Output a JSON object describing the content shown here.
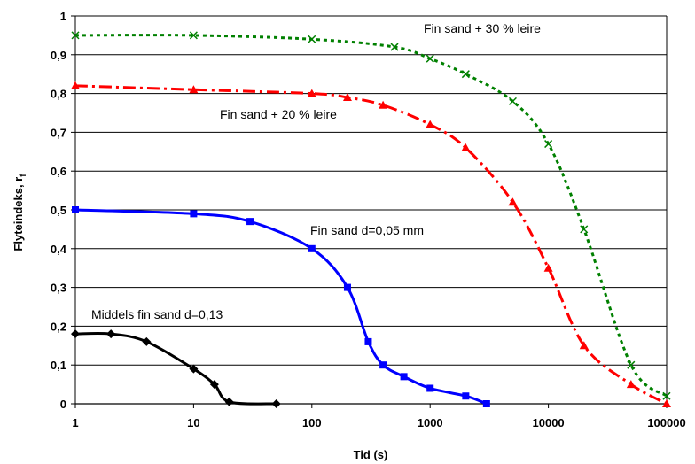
{
  "chart_data": {
    "type": "line",
    "xscale": "log",
    "xlabel": "Tid (s)",
    "ylabel": "Flyteindeks, r",
    "ylabel_subscript": "f",
    "xlim": [
      1,
      100000
    ],
    "ylim": [
      0,
      1
    ],
    "x_ticks": [
      "1",
      "10",
      "100",
      "1000",
      "10000",
      "100000"
    ],
    "y_ticks": [
      "0",
      "0,1",
      "0,2",
      "0,3",
      "0,4",
      "0,5",
      "0,6",
      "0,7",
      "0,8",
      "0,9",
      "1"
    ],
    "grid": "horizontal",
    "legend": "none",
    "series": [
      {
        "name": "Middels fin sand d=0,13",
        "color": "#000000",
        "dash": "solid",
        "marker": "diamond",
        "x": [
          1,
          2,
          4,
          10,
          15,
          20,
          50
        ],
        "y": [
          0.18,
          0.18,
          0.16,
          0.09,
          0.05,
          0.005,
          0.0
        ]
      },
      {
        "name": "Fin sand d=0,05 mm",
        "color": "#0000ff",
        "dash": "solid",
        "marker": "square",
        "x": [
          1,
          10,
          30,
          100,
          200,
          300,
          400,
          600,
          1000,
          2000,
          3000
        ],
        "y": [
          0.5,
          0.49,
          0.47,
          0.4,
          0.3,
          0.16,
          0.1,
          0.07,
          0.04,
          0.02,
          0.0
        ]
      },
      {
        "name": "Fin sand + 20 % leire",
        "color": "#ff0000",
        "dash": "dashdot",
        "marker": "triangle",
        "x": [
          1,
          10,
          100,
          200,
          400,
          1000,
          2000,
          5000,
          10000,
          20000,
          50000,
          100000
        ],
        "y": [
          0.82,
          0.81,
          0.8,
          0.79,
          0.77,
          0.72,
          0.66,
          0.52,
          0.35,
          0.15,
          0.05,
          0.0
        ]
      },
      {
        "name": "Fin sand + 30 % leire",
        "color": "#008000",
        "dash": "dotted",
        "marker": "x",
        "x": [
          1,
          10,
          100,
          500,
          1000,
          2000,
          5000,
          10000,
          20000,
          50000,
          100000
        ],
        "y": [
          0.95,
          0.95,
          0.94,
          0.92,
          0.89,
          0.85,
          0.78,
          0.67,
          0.45,
          0.1,
          0.02
        ]
      }
    ]
  }
}
